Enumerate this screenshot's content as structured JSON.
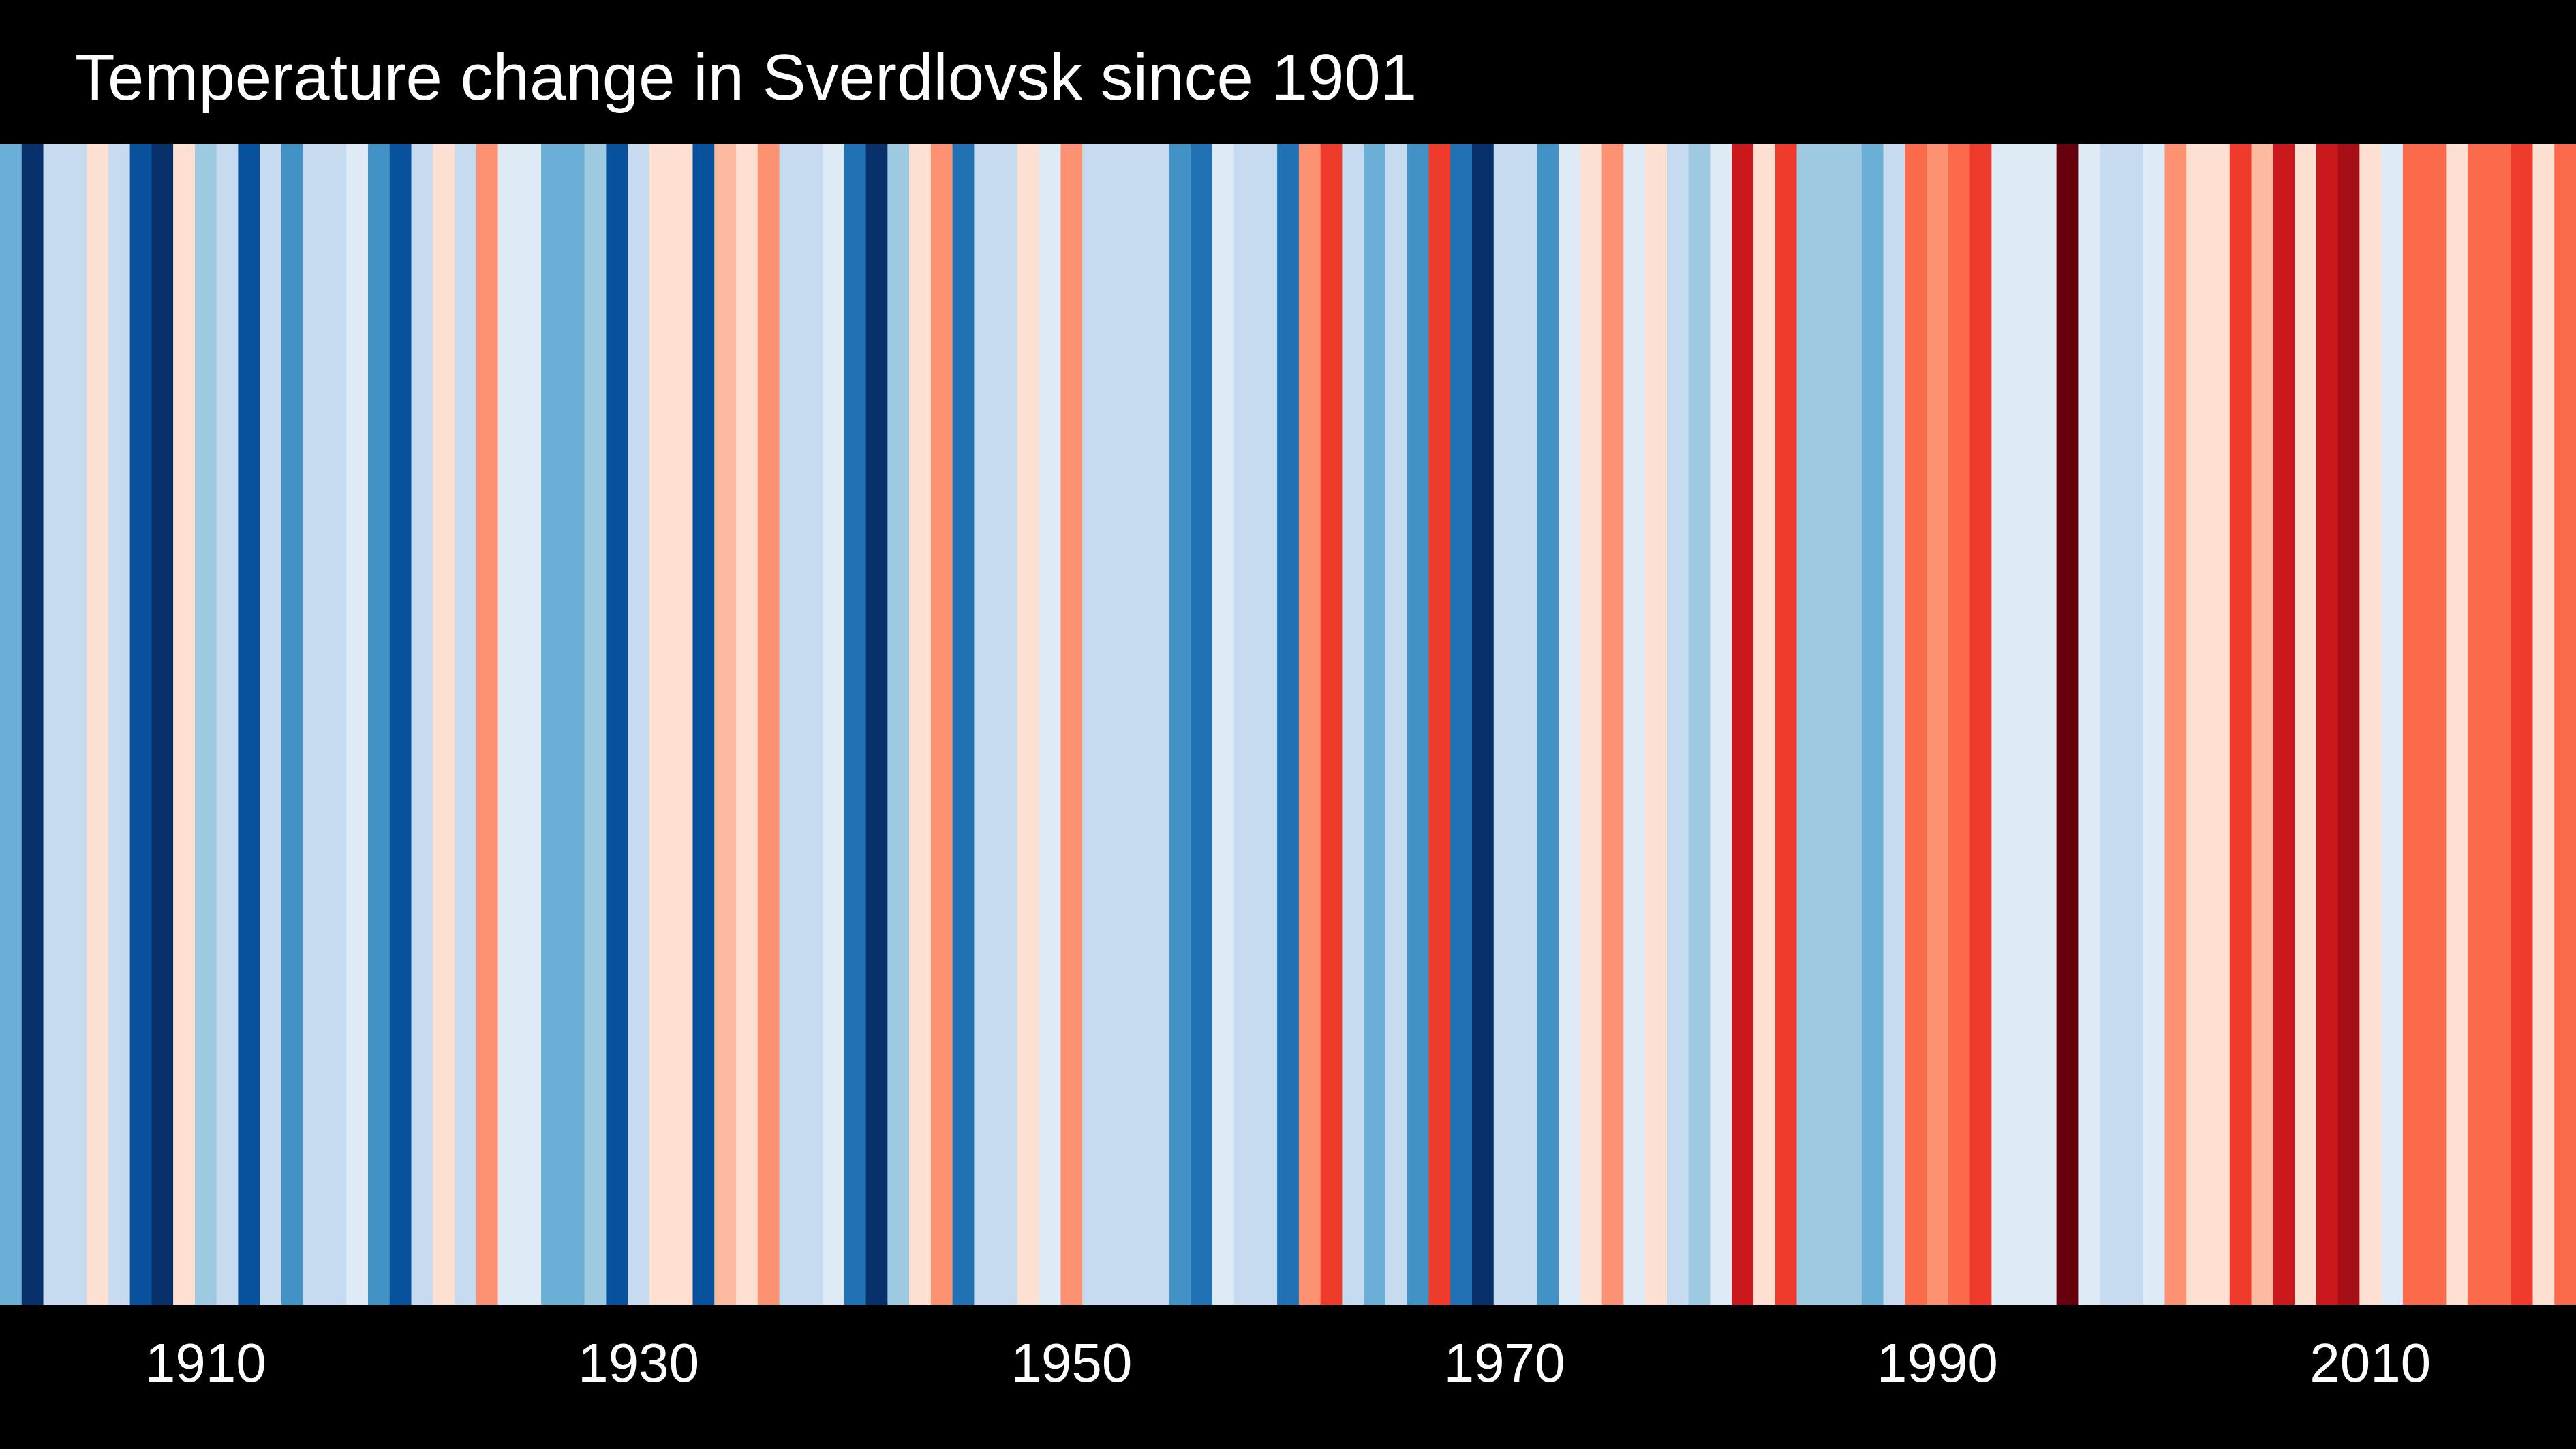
{
  "chart_data": {
    "type": "heatmap",
    "title": "Temperature change in Sverdlovsk since 1901",
    "xlabel": "",
    "ylabel": "",
    "x_range": [
      1901,
      2019
    ],
    "x_ticks": [
      1910,
      1930,
      1950,
      1970,
      1990,
      2010
    ],
    "x_tick_labels": [
      "1910",
      "1930",
      "1950",
      "1970",
      "1990",
      "2010"
    ],
    "years": [
      1901,
      1902,
      1903,
      1904,
      1905,
      1906,
      1907,
      1908,
      1909,
      1910,
      1911,
      1912,
      1913,
      1914,
      1915,
      1916,
      1917,
      1918,
      1919,
      1920,
      1921,
      1922,
      1923,
      1924,
      1925,
      1926,
      1927,
      1928,
      1929,
      1930,
      1931,
      1932,
      1933,
      1934,
      1935,
      1936,
      1937,
      1938,
      1939,
      1940,
      1941,
      1942,
      1943,
      1944,
      1945,
      1946,
      1947,
      1948,
      1949,
      1950,
      1951,
      1952,
      1953,
      1954,
      1955,
      1956,
      1957,
      1958,
      1959,
      1960,
      1961,
      1962,
      1963,
      1964,
      1965,
      1966,
      1967,
      1968,
      1969,
      1970,
      1971,
      1972,
      1973,
      1974,
      1975,
      1976,
      1977,
      1978,
      1979,
      1980,
      1981,
      1982,
      1983,
      1984,
      1985,
      1986,
      1987,
      1988,
      1989,
      1990,
      1991,
      1992,
      1993,
      1994,
      1995,
      1996,
      1997,
      1998,
      1999,
      2000,
      2001,
      2002,
      2003,
      2004,
      2005,
      2006,
      2007,
      2008,
      2009,
      2010,
      2011,
      2012,
      2013,
      2014,
      2015,
      2016,
      2017,
      2018,
      2019
    ],
    "colors": [
      "#6baed6",
      "#08306b",
      "#c6dbef",
      "#c6dbef",
      "#fee0d2",
      "#c6dbef",
      "#08519c",
      "#08306b",
      "#fee0d2",
      "#9ecae1",
      "#c6dbef",
      "#08519c",
      "#c6dbef",
      "#4292c6",
      "#c6dbef",
      "#c6dbef",
      "#deebf7",
      "#4292c6",
      "#08519c",
      "#c6dbef",
      "#fee0d2",
      "#c6dbef",
      "#fc9272",
      "#deebf7",
      "#deebf7",
      "#6baed6",
      "#6baed6",
      "#9ecae1",
      "#08519c",
      "#c6dbef",
      "#fee0d2",
      "#fee0d2",
      "#08519c",
      "#fcbba1",
      "#fee0d2",
      "#fc9272",
      "#c6dbef",
      "#c6dbef",
      "#deebf7",
      "#2171b5",
      "#08306b",
      "#9ecae1",
      "#fee0d2",
      "#fc9272",
      "#2171b5",
      "#c6dbef",
      "#c6dbef",
      "#fee0d2",
      "#deebf7",
      "#fc9272",
      "#c6dbef",
      "#c6dbef",
      "#c6dbef",
      "#c6dbef",
      "#4292c6",
      "#2171b5",
      "#deebf7",
      "#c6dbef",
      "#c6dbef",
      "#2171b5",
      "#fc9272",
      "#ef3b2c",
      "#c6dbef",
      "#6baed6",
      "#c6dbef",
      "#4292c6",
      "#ef3b2c",
      "#2171b5",
      "#08306b",
      "#c6dbef",
      "#c6dbef",
      "#4292c6",
      "#deebf7",
      "#fee0d2",
      "#fc9272",
      "#deebf7",
      "#fee0d2",
      "#c6dbef",
      "#9ecae1",
      "#deebf7",
      "#cb181d",
      "#fee0d2",
      "#ef3b2c",
      "#9ecae1",
      "#9ecae1",
      "#9ecae1",
      "#6baed6",
      "#c6dbef",
      "#fb6a4a",
      "#fc9272",
      "#fb6a4a",
      "#ef3b2c",
      "#deebf7",
      "#deebf7",
      "#deebf7",
      "#67000d",
      "#deebf7",
      "#c6dbef",
      "#c6dbef",
      "#deebf7",
      "#fc9272",
      "#fee0d2",
      "#fee0d2",
      "#ef3b2c",
      "#fcbba1",
      "#cb181d",
      "#fee0d2",
      "#cb181d",
      "#a50f15",
      "#fee0d2",
      "#deebf7",
      "#fb6a4a",
      "#fb6a4a",
      "#fee0d2",
      "#fb6a4a",
      "#fb6a4a",
      "#ef3b2c",
      "#fee0d2",
      "#fb6a4a"
    ]
  }
}
